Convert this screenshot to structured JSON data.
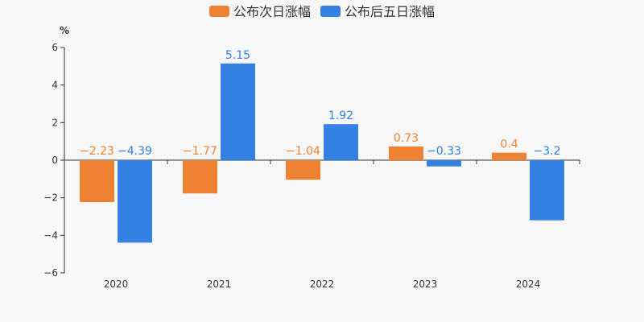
{
  "chart_data": {
    "type": "bar",
    "categories": [
      "2020",
      "2021",
      "2022",
      "2023",
      "2024"
    ],
    "series": [
      {
        "name": "公布次日涨幅",
        "color": "#ef8232",
        "values": [
          -2.23,
          -1.77,
          -1.04,
          0.73,
          0.4
        ],
        "labels": [
          "−2.23",
          "−1.77",
          "−1.04",
          "0.73",
          "0.4"
        ]
      },
      {
        "name": "公布后五日涨幅",
        "color": "#3381e3",
        "values": [
          -4.39,
          5.15,
          1.92,
          -0.33,
          -3.2
        ],
        "labels": [
          "−4.39",
          "5.15",
          "1.92",
          "−0.33",
          "−3.2"
        ]
      }
    ],
    "ylabel": "%",
    "ylim": [
      -6,
      6
    ],
    "yticks": [
      6,
      4,
      2,
      0,
      -2,
      -4,
      -6
    ],
    "ytick_labels": [
      "6",
      "4",
      "2",
      "0",
      "−2",
      "−4",
      "−6"
    ],
    "grid": false,
    "legend_position": "top-center"
  }
}
